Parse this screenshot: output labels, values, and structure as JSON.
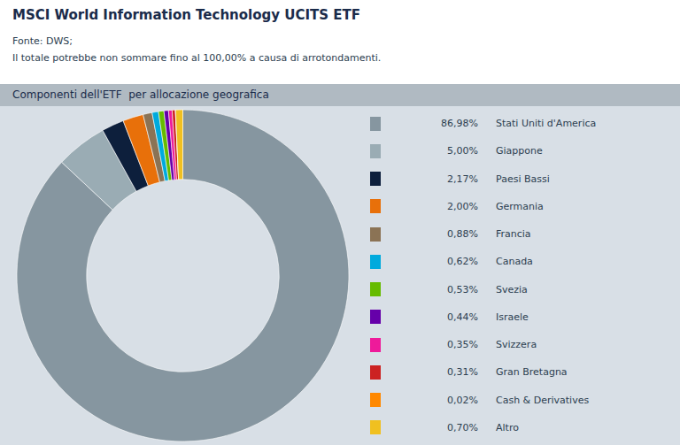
{
  "chart_data": {
    "type": "pie",
    "title": "MSCI World Information Technology UCITS ETF",
    "subtitle": "Componenti dell'ETF  per allocazione geografica",
    "annotations": [
      "Fonte: DWS;",
      "Il totale potrebbe non sommare fino al 100,00% a causa di arrotondamenti."
    ],
    "categories": [
      "Stati Uniti d'America",
      "Giappone",
      "Paesi Bassi",
      "Germania",
      "Francia",
      "Canada",
      "Svezia",
      "Israele",
      "Svizzera",
      "Gran Bretagna",
      "Cash & Derivatives",
      "Altro"
    ],
    "values": [
      86.98,
      5.0,
      2.17,
      2.0,
      0.88,
      0.62,
      0.53,
      0.44,
      0.35,
      0.31,
      0.02,
      0.7
    ],
    "value_labels": [
      "86,98%",
      "5,00%",
      "2,17%",
      "2,00%",
      "0,88%",
      "0,62%",
      "0,53%",
      "0,44%",
      "0,35%",
      "0,31%",
      "0,02%",
      "0,70%"
    ],
    "colors": [
      "#8696a0",
      "#9aacb4",
      "#0d1f3c",
      "#e8700a",
      "#8b7355",
      "#00aadd",
      "#66bb00",
      "#6600aa",
      "#ee1a9a",
      "#cc2222",
      "#ff8800",
      "#f0c020"
    ],
    "legend": "right"
  }
}
